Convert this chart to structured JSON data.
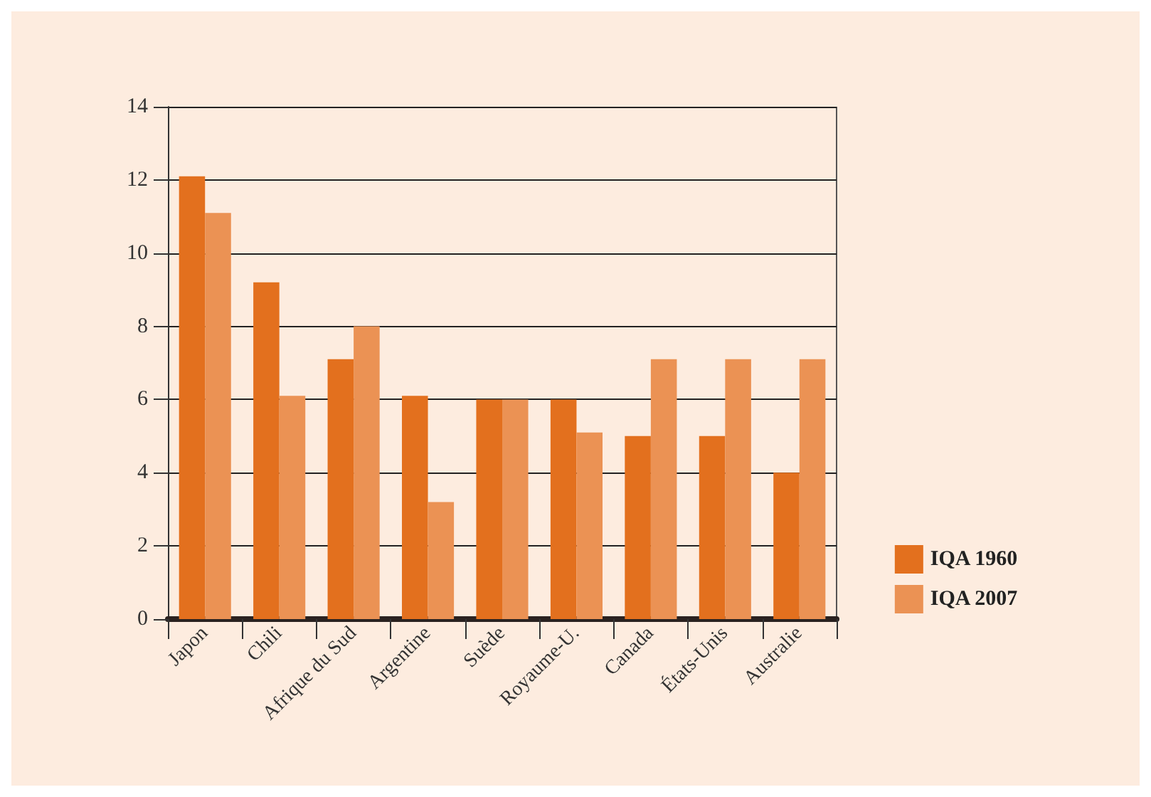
{
  "chart_data": {
    "type": "bar",
    "categories": [
      "Japon",
      "Chili",
      "Afrique du Sud",
      "Argentine",
      "Suède",
      "Royaume-U.",
      "Canada",
      "États-Unis",
      "Australie"
    ],
    "series": [
      {
        "name": "IQA 1960",
        "color": "#e3701e",
        "values": [
          12.1,
          9.2,
          7.1,
          6.1,
          6.0,
          6.0,
          5.0,
          5.0,
          4.0
        ]
      },
      {
        "name": "IQA 2007",
        "color": "#eb9254",
        "values": [
          11.1,
          6.1,
          8.0,
          3.2,
          6.0,
          5.1,
          7.1,
          7.1,
          7.1
        ]
      }
    ],
    "ylim": [
      0,
      14
    ],
    "yticks": [
      0,
      2,
      4,
      6,
      8,
      10,
      12,
      14
    ],
    "grid": "y",
    "legend": "right"
  }
}
